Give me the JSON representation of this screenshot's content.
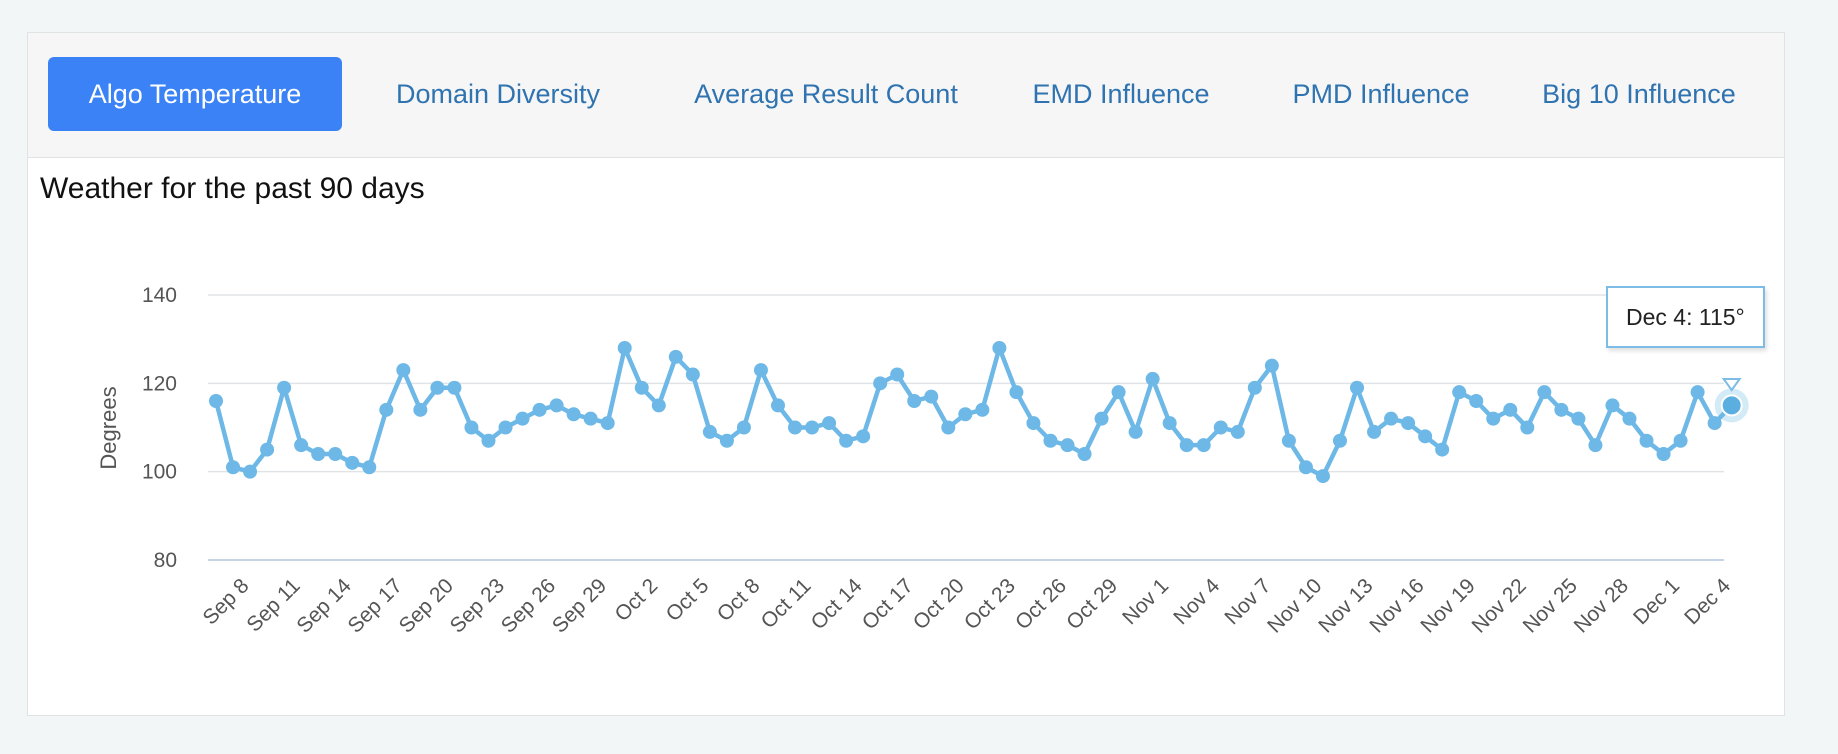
{
  "tabs": [
    {
      "label": "Algo Temperature",
      "active": true
    },
    {
      "label": "Domain Diversity",
      "active": false
    },
    {
      "label": "Average Result Count",
      "active": false
    },
    {
      "label": "EMD Influence",
      "active": false
    },
    {
      "label": "PMD Influence",
      "active": false
    },
    {
      "label": "Big 10 Influence",
      "active": false
    }
  ],
  "tooltip": {
    "text": "Dec 4: 115°"
  },
  "colors": {
    "accent": "#3b82f6",
    "line": "#6db8e6",
    "link": "#2f73b0"
  },
  "chart_data": {
    "type": "line",
    "title": "Weather for the past 90 days",
    "xlabel": "",
    "ylabel": "Degrees",
    "ylim": [
      80,
      140
    ],
    "yticks": [
      80,
      100,
      120,
      140
    ],
    "grid": true,
    "tick_labels": [
      "Sep 8",
      "Sep 11",
      "Sep 14",
      "Sep 17",
      "Sep 20",
      "Sep 23",
      "Sep 26",
      "Sep 29",
      "Oct 2",
      "Oct 5",
      "Oct 8",
      "Oct 11",
      "Oct 14",
      "Oct 17",
      "Oct 20",
      "Oct 23",
      "Oct 26",
      "Oct 29",
      "Nov 1",
      "Nov 4",
      "Nov 7",
      "Nov 10",
      "Nov 13",
      "Nov 16",
      "Nov 19",
      "Nov 22",
      "Nov 25",
      "Nov 28",
      "Dec 1",
      "Dec 4"
    ],
    "values": [
      116,
      101,
      100,
      105,
      119,
      106,
      104,
      104,
      102,
      101,
      114,
      123,
      114,
      119,
      119,
      110,
      107,
      110,
      112,
      114,
      115,
      113,
      112,
      111,
      128,
      119,
      115,
      126,
      122,
      109,
      107,
      110,
      123,
      115,
      110,
      110,
      111,
      107,
      108,
      120,
      122,
      116,
      117,
      110,
      113,
      114,
      128,
      118,
      111,
      107,
      106,
      104,
      112,
      118,
      109,
      121,
      111,
      106,
      106,
      110,
      109,
      119,
      124,
      107,
      101,
      99,
      107,
      119,
      109,
      112,
      111,
      108,
      105,
      118,
      116,
      112,
      114,
      110,
      118,
      114,
      112,
      106,
      115,
      112,
      107,
      104,
      107,
      118,
      111,
      115
    ],
    "highlight": {
      "label": "Dec 4",
      "value": 115
    }
  }
}
